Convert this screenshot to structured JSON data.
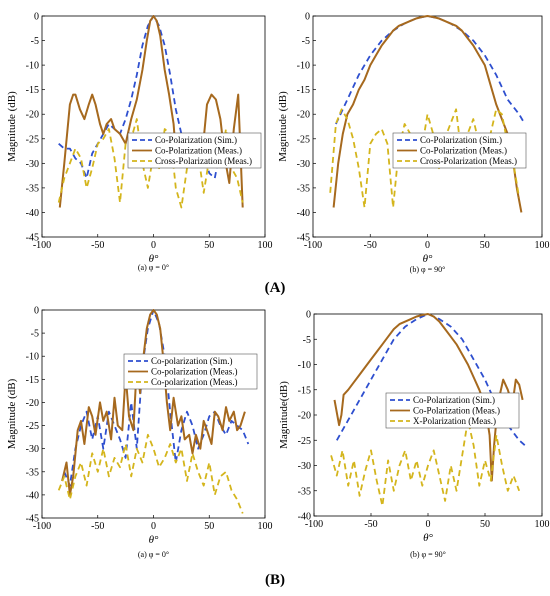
{
  "panels": [
    {
      "label_open": "(",
      "label_letter": "A",
      "label_close": ")"
    },
    {
      "label_open": "(",
      "label_letter": "B",
      "label_close": ")"
    }
  ],
  "colors": {
    "sim": "#2e4fcf",
    "co_meas": "#a6691e",
    "cross_meas": "#d4b51c"
  },
  "chart_data": [
    {
      "type": "line",
      "caption": "(a) φ = 0°",
      "xlabel": "θ°",
      "ylabel": "Magnitude (dB)",
      "xlim": [
        -100,
        100
      ],
      "ylim": [
        -45,
        0
      ],
      "xticks": [
        -100,
        -50,
        0,
        50,
        100
      ],
      "yticks": [
        0,
        -5,
        -10,
        -15,
        -20,
        -25,
        -30,
        -35,
        -40,
        -45
      ],
      "grid": false,
      "legend_position": "center-right",
      "series": [
        {
          "name": "Co-Polarization (Sim.)",
          "style": "dashed",
          "color": "#2e4fcf",
          "x": [
            -85,
            -80,
            -75,
            -70,
            -65,
            -60,
            -55,
            -50,
            -45,
            -40,
            -35,
            -30,
            -25,
            -20,
            -15,
            -10,
            -5,
            0,
            5,
            10,
            15,
            20,
            25,
            30,
            35,
            40,
            45,
            50,
            55,
            60,
            65,
            70,
            75,
            80
          ],
          "y": [
            -26,
            -27,
            -27,
            -29,
            -30,
            -33,
            -28,
            -26,
            -24,
            -22,
            -23,
            -24,
            -21,
            -17,
            -12,
            -6,
            -2,
            0,
            -2,
            -6,
            -12,
            -19,
            -24,
            -27,
            -28,
            -26,
            -28,
            -32,
            -33,
            -27,
            -25,
            -24,
            -26,
            -28
          ]
        },
        {
          "name": "Co-Polarization (Meas.)",
          "style": "solid",
          "color": "#a6691e",
          "x": [
            -84,
            -80,
            -75,
            -72,
            -70,
            -66,
            -62,
            -58,
            -55,
            -52,
            -48,
            -45,
            -42,
            -38,
            -35,
            -30,
            -25,
            -20,
            -15,
            -10,
            -6,
            -3,
            0,
            3,
            6,
            10,
            14,
            18,
            20,
            24,
            28,
            32,
            36,
            40,
            45,
            48,
            52,
            56,
            60,
            64,
            68,
            72,
            76,
            80
          ],
          "y": [
            -39,
            -30,
            -18,
            -16,
            -16,
            -19,
            -21,
            -18,
            -16,
            -18,
            -22,
            -24,
            -22,
            -21,
            -23,
            -24,
            -26,
            -21,
            -17,
            -11,
            -5,
            -1,
            0,
            -1,
            -4,
            -11,
            -16,
            -22,
            -28,
            -27,
            -25,
            -24,
            -26,
            -30,
            -25,
            -18,
            -16,
            -17,
            -21,
            -29,
            -34,
            -23,
            -16,
            -39
          ]
        },
        {
          "name": "Cross-Polarization (Meas.)",
          "style": "dashed",
          "color": "#d4b51c",
          "x": [
            -85,
            -80,
            -75,
            -70,
            -65,
            -60,
            -55,
            -50,
            -45,
            -40,
            -35,
            -30,
            -25,
            -20,
            -15,
            -10,
            -5,
            0,
            5,
            10,
            15,
            20,
            25,
            30,
            35,
            40,
            45,
            50,
            55,
            60,
            65,
            70,
            75,
            80
          ],
          "y": [
            -38,
            -33,
            -30,
            -27,
            -29,
            -35,
            -31,
            -26,
            -25,
            -23,
            -29,
            -38,
            -26,
            -25,
            -21,
            -30,
            -35,
            -28,
            -31,
            -23,
            -24,
            -35,
            -39,
            -31,
            -26,
            -28,
            -36,
            -29,
            -25,
            -30,
            -23,
            -31,
            -33,
            -38
          ]
        }
      ]
    },
    {
      "type": "line",
      "caption": "(b) φ = 90°",
      "xlabel": "θ°",
      "ylabel": "Magnitude (dB)",
      "xlim": [
        -100,
        100
      ],
      "ylim": [
        -45,
        0
      ],
      "xticks": [
        -100,
        -50,
        0,
        50,
        100
      ],
      "yticks": [
        0,
        -5,
        -10,
        -15,
        -20,
        -25,
        -30,
        -35,
        -40,
        -45
      ],
      "grid": false,
      "legend_position": "center-right",
      "series": [
        {
          "name": "Co-Polarization (Sim.)",
          "style": "dashed",
          "color": "#2e4fcf",
          "x": [
            -80,
            -70,
            -60,
            -50,
            -40,
            -30,
            -20,
            -10,
            0,
            10,
            20,
            30,
            40,
            50,
            60,
            70,
            80,
            85
          ],
          "y": [
            -22,
            -17,
            -12,
            -8,
            -5,
            -3,
            -1.5,
            -0.5,
            0,
            -0.5,
            -1.5,
            -3,
            -5,
            -8,
            -12,
            -17,
            -20,
            -22
          ]
        },
        {
          "name": "Co-Polarization (Meas.)",
          "style": "solid",
          "color": "#a6691e",
          "x": [
            -82,
            -78,
            -74,
            -70,
            -65,
            -60,
            -55,
            -50,
            -45,
            -40,
            -35,
            -30,
            -25,
            -20,
            -15,
            -10,
            -5,
            0,
            5,
            10,
            15,
            20,
            25,
            30,
            35,
            40,
            45,
            50,
            55,
            60,
            65,
            70,
            75,
            78,
            82
          ],
          "y": [
            -39,
            -30,
            -24,
            -20,
            -18,
            -15,
            -13,
            -10,
            -8,
            -6,
            -4.5,
            -3,
            -2,
            -1.5,
            -1,
            -0.5,
            -0.2,
            0,
            -0.2,
            -0.5,
            -1,
            -1.5,
            -2,
            -3,
            -4.5,
            -6,
            -8,
            -10,
            -14,
            -18,
            -21,
            -24,
            -30,
            -35,
            -40
          ]
        },
        {
          "name": "Cross-Polarization (Meas.)",
          "style": "dashed",
          "color": "#d4b51c",
          "x": [
            -85,
            -80,
            -75,
            -70,
            -65,
            -60,
            -55,
            -50,
            -45,
            -40,
            -35,
            -30,
            -25,
            -20,
            -15,
            -10,
            -5,
            0,
            5,
            10,
            15,
            20,
            25,
            30,
            35,
            40,
            45,
            50,
            55,
            60,
            65,
            70,
            75,
            80
          ],
          "y": [
            -36,
            -22,
            -19,
            -21,
            -25,
            -31,
            -39,
            -26,
            -24,
            -23,
            -26,
            -39,
            -27,
            -22,
            -24,
            -29,
            -27,
            -20,
            -24,
            -31,
            -25,
            -22,
            -19,
            -29,
            -24,
            -21,
            -26,
            -27,
            -24,
            -19,
            -20,
            -26,
            -30,
            -37
          ]
        }
      ]
    },
    {
      "type": "line",
      "caption": "(a) φ = 0°",
      "xlabel": "θ°",
      "ylabel": "Magnitude (dB)",
      "xlim": [
        -100,
        100
      ],
      "ylim": [
        -45,
        0
      ],
      "xticks": [
        -100,
        -50,
        0,
        50,
        100
      ],
      "yticks": [
        0,
        -5,
        -10,
        -15,
        -20,
        -25,
        -30,
        -35,
        -40,
        -45
      ],
      "grid": false,
      "legend_position": "center-right",
      "series": [
        {
          "name": "Co-polarization (Sim.)",
          "style": "dashed",
          "color": "#2e4fcf",
          "x": [
            -80,
            -75,
            -70,
            -65,
            -60,
            -55,
            -50,
            -45,
            -40,
            -35,
            -30,
            -25,
            -20,
            -15,
            -10,
            -5,
            0,
            5,
            10,
            15,
            20,
            25,
            30,
            35,
            40,
            45,
            50,
            55,
            60,
            65,
            70,
            75,
            80,
            85
          ],
          "y": [
            -35,
            -38,
            -30,
            -25,
            -22,
            -28,
            -23,
            -30,
            -22,
            -25,
            -28,
            -32,
            -20,
            -30,
            -12,
            -4,
            0,
            -3,
            -10,
            -22,
            -33,
            -26,
            -22,
            -25,
            -30,
            -27,
            -23,
            -22,
            -25,
            -27,
            -24,
            -25,
            -26,
            -29
          ]
        },
        {
          "name": "Co-polarization (Meas.)",
          "style": "solid",
          "color": "#a6691e",
          "x": [
            -82,
            -78,
            -75,
            -72,
            -68,
            -65,
            -62,
            -58,
            -55,
            -52,
            -48,
            -45,
            -42,
            -38,
            -35,
            -32,
            -28,
            -25,
            -22,
            -18,
            -15,
            -12,
            -9,
            -6,
            -3,
            0,
            3,
            6,
            9,
            12,
            15,
            18,
            22,
            25,
            28,
            32,
            35,
            38,
            42,
            45,
            48,
            52,
            55,
            58,
            62,
            65,
            68,
            72,
            75,
            78,
            82
          ],
          "y": [
            -37,
            -33,
            -40,
            -36,
            -26,
            -24,
            -29,
            -21,
            -23,
            -27,
            -20,
            -24,
            -22,
            -28,
            -19,
            -25,
            -26,
            -14,
            -23,
            -26,
            -12,
            -18,
            -10,
            -4,
            -1,
            0,
            -1,
            -4,
            -11,
            -20,
            -26,
            -19,
            -25,
            -23,
            -28,
            -27,
            -31,
            -27,
            -30,
            -24,
            -26,
            -29,
            -22,
            -23,
            -26,
            -21,
            -24,
            -22,
            -26,
            -25,
            -22
          ]
        },
        {
          "name": "Co-polarization (Meas.)",
          "style": "dashed",
          "color": "#d4b51c",
          "x": [
            -85,
            -80,
            -75,
            -70,
            -65,
            -60,
            -55,
            -50,
            -45,
            -40,
            -35,
            -30,
            -25,
            -20,
            -15,
            -10,
            -5,
            0,
            5,
            10,
            15,
            20,
            25,
            30,
            35,
            40,
            45,
            50,
            55,
            60,
            65,
            70,
            75,
            80
          ],
          "y": [
            -39,
            -36,
            -41,
            -36,
            -33,
            -38,
            -31,
            -35,
            -30,
            -36,
            -32,
            -34,
            -29,
            -36,
            -30,
            -33,
            -27,
            -30,
            -34,
            -32,
            -29,
            -33,
            -30,
            -37,
            -31,
            -35,
            -38,
            -33,
            -40,
            -36,
            -35,
            -39,
            -41,
            -44
          ]
        }
      ]
    },
    {
      "type": "line",
      "caption": "(b) φ = 90°",
      "xlabel": "θ°",
      "ylabel": "Magnitude(dB)",
      "xlim": [
        -100,
        100
      ],
      "ylim": [
        -40,
        0
      ],
      "xticks": [
        -100,
        -50,
        0,
        50,
        100
      ],
      "yticks": [
        0,
        -5,
        -10,
        -15,
        -20,
        -25,
        -30,
        -35,
        -40
      ],
      "grid": false,
      "legend_position": "center-right",
      "series": [
        {
          "name": "Co-Polarization (Sim.)",
          "style": "dashed",
          "color": "#2e4fcf",
          "x": [
            -80,
            -70,
            -60,
            -50,
            -40,
            -30,
            -20,
            -10,
            0,
            10,
            20,
            30,
            40,
            50,
            60,
            70,
            80,
            85
          ],
          "y": [
            -25,
            -21,
            -17,
            -13,
            -9,
            -5,
            -2.5,
            -1,
            0,
            -1,
            -2.5,
            -5,
            -9,
            -13,
            -18,
            -22,
            -25,
            -26
          ]
        },
        {
          "name": "Co-Polarization (Meas.)",
          "style": "solid",
          "color": "#a6691e",
          "x": [
            -82,
            -78,
            -76,
            -74,
            -70,
            -65,
            -60,
            -55,
            -50,
            -45,
            -40,
            -35,
            -30,
            -25,
            -20,
            -15,
            -10,
            -5,
            0,
            5,
            10,
            15,
            20,
            25,
            30,
            35,
            40,
            45,
            50,
            54,
            56,
            58,
            60,
            62,
            66,
            70,
            74,
            77,
            80,
            83
          ],
          "y": [
            -17,
            -22,
            -20,
            -16,
            -15,
            -13.5,
            -12,
            -10.5,
            -9,
            -7.5,
            -6,
            -4.5,
            -3,
            -2,
            -1.5,
            -1,
            -0.5,
            -0.2,
            0,
            -0.5,
            -1.5,
            -3,
            -4.5,
            -6,
            -8,
            -10,
            -12.5,
            -15,
            -18,
            -24,
            -33,
            -26,
            -21,
            -17,
            -13,
            -15,
            -18,
            -13,
            -14,
            -17
          ]
        },
        {
          "name": "X-Polarization (Meas.)",
          "style": "dashed",
          "color": "#d4b51c",
          "x": [
            -85,
            -80,
            -75,
            -70,
            -65,
            -60,
            -55,
            -50,
            -45,
            -40,
            -35,
            -30,
            -25,
            -20,
            -15,
            -10,
            -5,
            0,
            5,
            10,
            15,
            20,
            25,
            30,
            35,
            40,
            45,
            50,
            55,
            60,
            65,
            70,
            75,
            80
          ],
          "y": [
            -28,
            -32,
            -27,
            -34,
            -29,
            -36,
            -31,
            -27,
            -33,
            -38,
            -29,
            -35,
            -30,
            -27,
            -33,
            -29,
            -34,
            -30,
            -27,
            -32,
            -37,
            -30,
            -35,
            -28,
            -21,
            -26,
            -34,
            -29,
            -33,
            -24,
            -30,
            -35,
            -32,
            -35
          ]
        }
      ]
    }
  ]
}
